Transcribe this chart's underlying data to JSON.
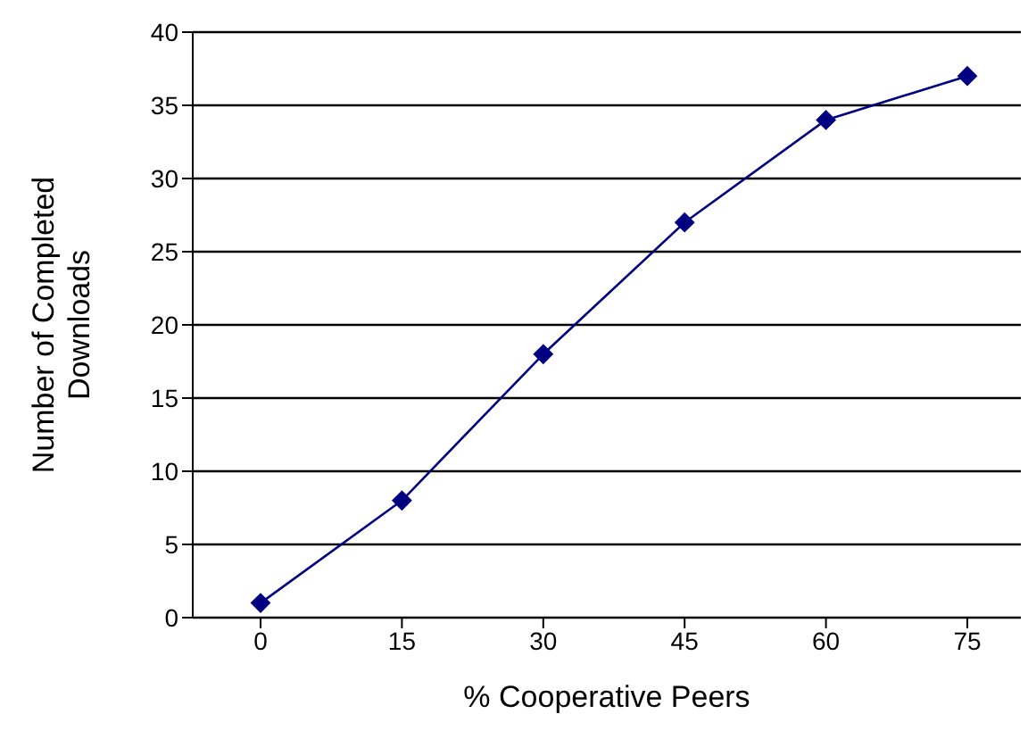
{
  "chart_data": {
    "type": "line",
    "xlabel": "% Cooperative Peers",
    "ylabel": "Number of Completed Downloads",
    "categories": [
      "0",
      "15",
      "30",
      "45",
      "60",
      "75"
    ],
    "series": [
      {
        "color": "#000080",
        "values": [
          1,
          8,
          18,
          27,
          34,
          37
        ]
      }
    ],
    "ylim": [
      0,
      40
    ],
    "yticks": [
      0,
      5,
      10,
      15,
      20,
      25,
      30,
      35,
      40
    ],
    "grid": "y",
    "marker": "diamond",
    "line_style": "solid"
  }
}
